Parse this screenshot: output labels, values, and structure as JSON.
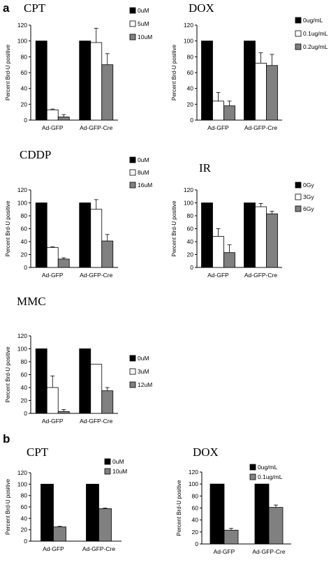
{
  "panel_labels": [
    "a",
    "b"
  ],
  "chart_data": [
    {
      "type": "bar",
      "title": "CPT",
      "ylabel": "Percent Brd-U positive",
      "xlabel": "",
      "categories": [
        "Ad-GFP",
        "Ad-GFP-Cre"
      ],
      "ylim": [
        0,
        120
      ],
      "yticks": [
        0,
        20,
        40,
        60,
        80,
        100,
        120
      ],
      "legend_position": "right",
      "series": [
        {
          "name": "0uM",
          "color": "#000000",
          "values": [
            100,
            100
          ],
          "errors": [
            0,
            0
          ]
        },
        {
          "name": "5uM",
          "color": "#ffffff",
          "values": [
            13,
            98
          ],
          "errors": [
            1,
            18
          ]
        },
        {
          "name": "10uM",
          "color": "#808080",
          "values": [
            4,
            70
          ],
          "errors": [
            3,
            14
          ]
        }
      ]
    },
    {
      "type": "bar",
      "title": "DOX",
      "ylabel": "Percent Brd-U positive",
      "xlabel": "",
      "categories": [
        "Ad-GFP",
        "Ad-GFP-Cre"
      ],
      "ylim": [
        0,
        120
      ],
      "yticks": [
        0,
        20,
        40,
        60,
        80,
        100,
        120
      ],
      "legend_position": "right",
      "series": [
        {
          "name": "0ug/mL",
          "color": "#000000",
          "values": [
            100,
            100
          ],
          "errors": [
            0,
            0
          ]
        },
        {
          "name": "0.1ug/mL",
          "color": "#ffffff",
          "values": [
            24,
            72
          ],
          "errors": [
            11,
            13
          ]
        },
        {
          "name": "0.2ug/mL",
          "color": "#808080",
          "values": [
            18,
            69
          ],
          "errors": [
            6,
            14
          ]
        }
      ]
    },
    {
      "type": "bar",
      "title": "CDDP",
      "ylabel": "Percent Brd-U positive",
      "xlabel": "",
      "categories": [
        "Ad-GFP",
        "Ad-GFP-Cre"
      ],
      "ylim": [
        0,
        120
      ],
      "yticks": [
        0,
        20,
        40,
        60,
        80,
        100,
        120
      ],
      "legend_position": "right",
      "series": [
        {
          "name": "0uM",
          "color": "#000000",
          "values": [
            100,
            100
          ],
          "errors": [
            0,
            0
          ]
        },
        {
          "name": "8uM",
          "color": "#ffffff",
          "values": [
            31,
            90
          ],
          "errors": [
            1,
            15
          ]
        },
        {
          "name": "16uM",
          "color": "#808080",
          "values": [
            13,
            41
          ],
          "errors": [
            2,
            10
          ]
        }
      ]
    },
    {
      "type": "bar",
      "title": "IR",
      "ylabel": "Percent Brd-U positive",
      "xlabel": "",
      "categories": [
        "Ad-GFP",
        "Ad-GFP-Cre"
      ],
      "ylim": [
        0,
        120
      ],
      "yticks": [
        0,
        20,
        40,
        60,
        80,
        100,
        120
      ],
      "legend_position": "right",
      "series": [
        {
          "name": "0Gy",
          "color": "#000000",
          "values": [
            100,
            100
          ],
          "errors": [
            0,
            0
          ]
        },
        {
          "name": "3Gy",
          "color": "#ffffff",
          "values": [
            48,
            94
          ],
          "errors": [
            12,
            5
          ]
        },
        {
          "name": "6Gy",
          "color": "#808080",
          "values": [
            23,
            83
          ],
          "errors": [
            12,
            4
          ]
        }
      ]
    },
    {
      "type": "bar",
      "title": "MMC",
      "ylabel": "Percent Brd-U positive",
      "xlabel": "",
      "categories": [
        "Ad-GFP",
        "Ad-GFP-Cre"
      ],
      "ylim": [
        0,
        120
      ],
      "yticks": [
        0,
        20,
        40,
        60,
        80,
        100,
        120
      ],
      "legend_position": "right",
      "series": [
        {
          "name": "0uM",
          "color": "#000000",
          "values": [
            100,
            100
          ],
          "errors": [
            0,
            0
          ]
        },
        {
          "name": "3uM",
          "color": "#ffffff",
          "values": [
            40,
            76
          ],
          "errors": [
            18,
            0
          ]
        },
        {
          "name": "12uM",
          "color": "#808080",
          "values": [
            3,
            35
          ],
          "errors": [
            3,
            5
          ]
        }
      ]
    },
    {
      "type": "bar",
      "title": "CPT",
      "ylabel": "Percent Brd-U positive",
      "xlabel": "",
      "categories": [
        "Ad-GFP",
        "Ad-GFP-Cre"
      ],
      "ylim": [
        0,
        120
      ],
      "yticks": [
        0,
        20,
        40,
        60,
        80,
        100,
        120
      ],
      "legend_position": "top-right",
      "series": [
        {
          "name": "0uM",
          "color": "#000000",
          "values": [
            100,
            100
          ],
          "errors": [
            0,
            0
          ]
        },
        {
          "name": "10uM",
          "color": "#808080",
          "values": [
            25,
            57
          ],
          "errors": [
            1,
            1
          ]
        }
      ]
    },
    {
      "type": "bar",
      "title": "DOX",
      "ylabel": "Percent Brd-U positive",
      "xlabel": "",
      "categories": [
        "Ad-GFP",
        "Ad-GFP-Cre"
      ],
      "ylim": [
        0,
        120
      ],
      "yticks": [
        0,
        20,
        40,
        60,
        80,
        100,
        120
      ],
      "legend_position": "top-right",
      "series": [
        {
          "name": "0ug/mL",
          "color": "#000000",
          "values": [
            100,
            100
          ],
          "errors": [
            0,
            0
          ]
        },
        {
          "name": "0.1ug/mL",
          "color": "#808080",
          "values": [
            23,
            61
          ],
          "errors": [
            3,
            4
          ]
        }
      ]
    }
  ]
}
